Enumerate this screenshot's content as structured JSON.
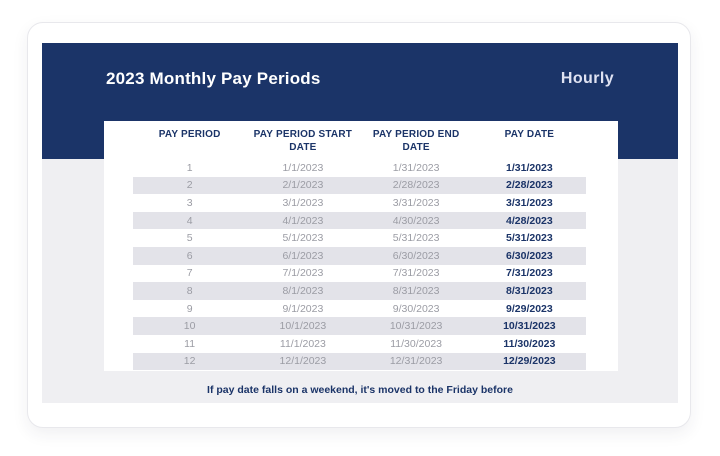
{
  "card": {
    "title": "2023 Monthly Pay Periods",
    "brand": "Hourly",
    "footnote": "If pay date falls on a weekend, it's moved to the Friday before"
  },
  "table": {
    "columns": [
      "PAY PERIOD",
      "PAY PERIOD START DATE",
      "PAY PERIOD END DATE",
      "PAY DATE"
    ],
    "rows": [
      [
        "1",
        "1/1/2023",
        "1/31/2023",
        "1/31/2023"
      ],
      [
        "2",
        "2/1/2023",
        "2/28/2023",
        "2/28/2023"
      ],
      [
        "3",
        "3/1/2023",
        "3/31/2023",
        "3/31/2023"
      ],
      [
        "4",
        "4/1/2023",
        "4/30/2023",
        "4/28/2023"
      ],
      [
        "5",
        "5/1/2023",
        "5/31/2023",
        "5/31/2023"
      ],
      [
        "6",
        "6/1/2023",
        "6/30/2023",
        "6/30/2023"
      ],
      [
        "7",
        "7/1/2023",
        "7/31/2023",
        "7/31/2023"
      ],
      [
        "8",
        "8/1/2023",
        "8/31/2023",
        "8/31/2023"
      ],
      [
        "9",
        "9/1/2023",
        "9/30/2023",
        "9/29/2023"
      ],
      [
        "10",
        "10/1/2023",
        "10/31/2023",
        "10/31/2023"
      ],
      [
        "11",
        "11/1/2023",
        "11/30/2023",
        "11/30/2023"
      ],
      [
        "12",
        "12/1/2023",
        "12/31/2023",
        "12/29/2023"
      ]
    ]
  },
  "colors": {
    "navy": "#1b3468",
    "panel_gray": "#efeff2",
    "row_stripe": "#e3e3e9",
    "muted_text": "#9b9ca4",
    "card_background": "#ffffff"
  }
}
